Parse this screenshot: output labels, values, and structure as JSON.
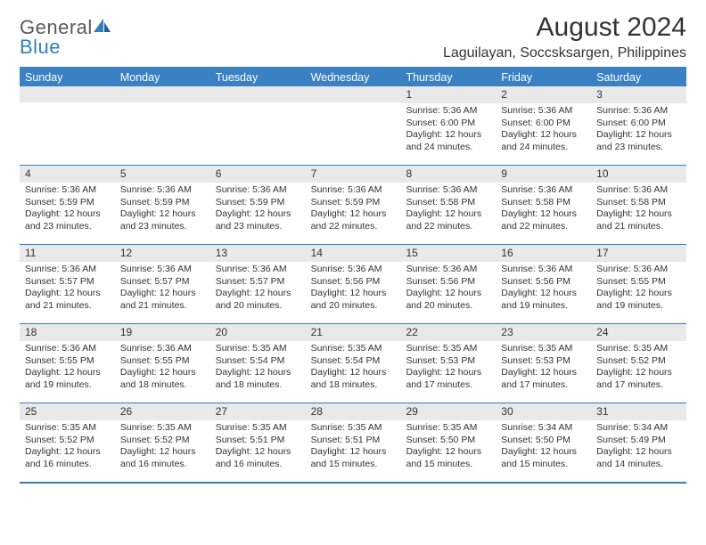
{
  "logo": {
    "part1": "General",
    "part2": "Blue"
  },
  "title": "August 2024",
  "location": "Laguilayan, Soccsksargen, Philippines",
  "colors": {
    "header_bar": "#3a81c4",
    "accent": "#2f7fc1",
    "daynum_bg": "#e9e9e9",
    "text": "#333333",
    "logo_gray": "#5a5a5a"
  },
  "fonts": {
    "title_size": 30,
    "location_size": 16,
    "weekday_size": 12.5,
    "daynum_size": 12,
    "body_size": 10.5
  },
  "weekdays": [
    "Sunday",
    "Monday",
    "Tuesday",
    "Wednesday",
    "Thursday",
    "Friday",
    "Saturday"
  ],
  "weeks": [
    [
      {
        "num": "",
        "sunrise": "",
        "sunset": "",
        "daylight": ""
      },
      {
        "num": "",
        "sunrise": "",
        "sunset": "",
        "daylight": ""
      },
      {
        "num": "",
        "sunrise": "",
        "sunset": "",
        "daylight": ""
      },
      {
        "num": "",
        "sunrise": "",
        "sunset": "",
        "daylight": ""
      },
      {
        "num": "1",
        "sunrise": "Sunrise: 5:36 AM",
        "sunset": "Sunset: 6:00 PM",
        "daylight": "Daylight: 12 hours and 24 minutes."
      },
      {
        "num": "2",
        "sunrise": "Sunrise: 5:36 AM",
        "sunset": "Sunset: 6:00 PM",
        "daylight": "Daylight: 12 hours and 24 minutes."
      },
      {
        "num": "3",
        "sunrise": "Sunrise: 5:36 AM",
        "sunset": "Sunset: 6:00 PM",
        "daylight": "Daylight: 12 hours and 23 minutes."
      }
    ],
    [
      {
        "num": "4",
        "sunrise": "Sunrise: 5:36 AM",
        "sunset": "Sunset: 5:59 PM",
        "daylight": "Daylight: 12 hours and 23 minutes."
      },
      {
        "num": "5",
        "sunrise": "Sunrise: 5:36 AM",
        "sunset": "Sunset: 5:59 PM",
        "daylight": "Daylight: 12 hours and 23 minutes."
      },
      {
        "num": "6",
        "sunrise": "Sunrise: 5:36 AM",
        "sunset": "Sunset: 5:59 PM",
        "daylight": "Daylight: 12 hours and 23 minutes."
      },
      {
        "num": "7",
        "sunrise": "Sunrise: 5:36 AM",
        "sunset": "Sunset: 5:59 PM",
        "daylight": "Daylight: 12 hours and 22 minutes."
      },
      {
        "num": "8",
        "sunrise": "Sunrise: 5:36 AM",
        "sunset": "Sunset: 5:58 PM",
        "daylight": "Daylight: 12 hours and 22 minutes."
      },
      {
        "num": "9",
        "sunrise": "Sunrise: 5:36 AM",
        "sunset": "Sunset: 5:58 PM",
        "daylight": "Daylight: 12 hours and 22 minutes."
      },
      {
        "num": "10",
        "sunrise": "Sunrise: 5:36 AM",
        "sunset": "Sunset: 5:58 PM",
        "daylight": "Daylight: 12 hours and 21 minutes."
      }
    ],
    [
      {
        "num": "11",
        "sunrise": "Sunrise: 5:36 AM",
        "sunset": "Sunset: 5:57 PM",
        "daylight": "Daylight: 12 hours and 21 minutes."
      },
      {
        "num": "12",
        "sunrise": "Sunrise: 5:36 AM",
        "sunset": "Sunset: 5:57 PM",
        "daylight": "Daylight: 12 hours and 21 minutes."
      },
      {
        "num": "13",
        "sunrise": "Sunrise: 5:36 AM",
        "sunset": "Sunset: 5:57 PM",
        "daylight": "Daylight: 12 hours and 20 minutes."
      },
      {
        "num": "14",
        "sunrise": "Sunrise: 5:36 AM",
        "sunset": "Sunset: 5:56 PM",
        "daylight": "Daylight: 12 hours and 20 minutes."
      },
      {
        "num": "15",
        "sunrise": "Sunrise: 5:36 AM",
        "sunset": "Sunset: 5:56 PM",
        "daylight": "Daylight: 12 hours and 20 minutes."
      },
      {
        "num": "16",
        "sunrise": "Sunrise: 5:36 AM",
        "sunset": "Sunset: 5:56 PM",
        "daylight": "Daylight: 12 hours and 19 minutes."
      },
      {
        "num": "17",
        "sunrise": "Sunrise: 5:36 AM",
        "sunset": "Sunset: 5:55 PM",
        "daylight": "Daylight: 12 hours and 19 minutes."
      }
    ],
    [
      {
        "num": "18",
        "sunrise": "Sunrise: 5:36 AM",
        "sunset": "Sunset: 5:55 PM",
        "daylight": "Daylight: 12 hours and 19 minutes."
      },
      {
        "num": "19",
        "sunrise": "Sunrise: 5:36 AM",
        "sunset": "Sunset: 5:55 PM",
        "daylight": "Daylight: 12 hours and 18 minutes."
      },
      {
        "num": "20",
        "sunrise": "Sunrise: 5:35 AM",
        "sunset": "Sunset: 5:54 PM",
        "daylight": "Daylight: 12 hours and 18 minutes."
      },
      {
        "num": "21",
        "sunrise": "Sunrise: 5:35 AM",
        "sunset": "Sunset: 5:54 PM",
        "daylight": "Daylight: 12 hours and 18 minutes."
      },
      {
        "num": "22",
        "sunrise": "Sunrise: 5:35 AM",
        "sunset": "Sunset: 5:53 PM",
        "daylight": "Daylight: 12 hours and 17 minutes."
      },
      {
        "num": "23",
        "sunrise": "Sunrise: 5:35 AM",
        "sunset": "Sunset: 5:53 PM",
        "daylight": "Daylight: 12 hours and 17 minutes."
      },
      {
        "num": "24",
        "sunrise": "Sunrise: 5:35 AM",
        "sunset": "Sunset: 5:52 PM",
        "daylight": "Daylight: 12 hours and 17 minutes."
      }
    ],
    [
      {
        "num": "25",
        "sunrise": "Sunrise: 5:35 AM",
        "sunset": "Sunset: 5:52 PM",
        "daylight": "Daylight: 12 hours and 16 minutes."
      },
      {
        "num": "26",
        "sunrise": "Sunrise: 5:35 AM",
        "sunset": "Sunset: 5:52 PM",
        "daylight": "Daylight: 12 hours and 16 minutes."
      },
      {
        "num": "27",
        "sunrise": "Sunrise: 5:35 AM",
        "sunset": "Sunset: 5:51 PM",
        "daylight": "Daylight: 12 hours and 16 minutes."
      },
      {
        "num": "28",
        "sunrise": "Sunrise: 5:35 AM",
        "sunset": "Sunset: 5:51 PM",
        "daylight": "Daylight: 12 hours and 15 minutes."
      },
      {
        "num": "29",
        "sunrise": "Sunrise: 5:35 AM",
        "sunset": "Sunset: 5:50 PM",
        "daylight": "Daylight: 12 hours and 15 minutes."
      },
      {
        "num": "30",
        "sunrise": "Sunrise: 5:34 AM",
        "sunset": "Sunset: 5:50 PM",
        "daylight": "Daylight: 12 hours and 15 minutes."
      },
      {
        "num": "31",
        "sunrise": "Sunrise: 5:34 AM",
        "sunset": "Sunset: 5:49 PM",
        "daylight": "Daylight: 12 hours and 14 minutes."
      }
    ]
  ]
}
